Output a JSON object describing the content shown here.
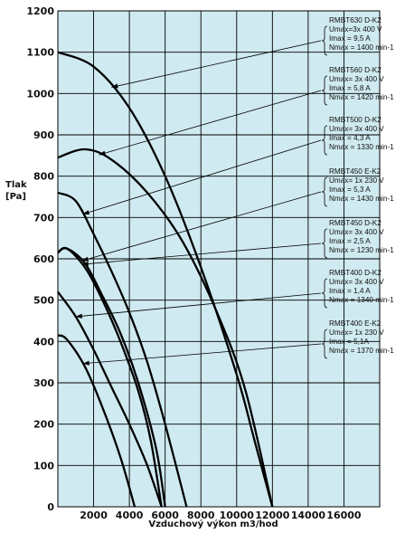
{
  "chart_data": {
    "type": "line",
    "xlabel": "Vzduchový výkon m3/hod",
    "ylabel": "Tlak\n[Pa]",
    "xlim": [
      0,
      18000
    ],
    "ylim": [
      0,
      1200
    ],
    "xticks": [
      2000,
      4000,
      6000,
      8000,
      10000,
      12000,
      14000,
      16000
    ],
    "yticks": [
      0,
      100,
      200,
      300,
      400,
      500,
      600,
      700,
      800,
      900,
      1000,
      1100,
      1200
    ],
    "grid": true,
    "background": "#cfeaf0",
    "series": [
      {
        "name": "RMBT630 D-K2",
        "x": [
          0,
          2000,
          4000,
          6000,
          8000,
          10000,
          11000,
          12000
        ],
        "y": [
          1100,
          1065,
          965,
          800,
          580,
          320,
          160,
          0
        ],
        "note": [
          "Umax=3x 400 V",
          "Imax = 9,5 A",
          "Nmax = 1400 min-1"
        ]
      },
      {
        "name": "RMBT560 D-K2",
        "x": [
          0,
          1500,
          3000,
          5000,
          7000,
          9000,
          10500,
          12000
        ],
        "y": [
          845,
          865,
          840,
          760,
          640,
          460,
          280,
          0
        ],
        "note": [
          "Umax= 3x 400 V",
          "Imax = 5,8 A",
          "Nmax = 1420 min-1"
        ]
      },
      {
        "name": "RMBT500 D-K2",
        "x": [
          0,
          1000,
          2000,
          3000,
          4000,
          5000,
          6000,
          7200
        ],
        "y": [
          760,
          740,
          660,
          570,
          470,
          350,
          200,
          0
        ],
        "note": [
          "Umax= 3x 400 V",
          "Imax = 4,3 A",
          "Nmax = 1330 min-1"
        ]
      },
      {
        "name": "RMBT450 E-K2",
        "x": [
          0,
          500,
          1500,
          2500,
          3500,
          4500,
          5500,
          6000
        ],
        "y": [
          615,
          625,
          590,
          510,
          420,
          300,
          140,
          0
        ],
        "note": [
          "Umax= 1x 230 V",
          "Imax = 5,3 A",
          "Nmax = 1430 min-1"
        ]
      },
      {
        "name": "RMBT450 D-K2",
        "x": [
          0,
          500,
          1500,
          2500,
          3500,
          4500,
          5200,
          5800
        ],
        "y": [
          615,
          625,
          580,
          500,
          400,
          280,
          160,
          0
        ],
        "note": [
          "Umax= 3x 400 V",
          "Imax = 2,5 A",
          "Nmax = 1230 min-1"
        ]
      },
      {
        "name": "RMBT400 D-K2",
        "x": [
          0,
          1000,
          2000,
          3000,
          4000,
          5000,
          5800
        ],
        "y": [
          520,
          460,
          380,
          290,
          200,
          100,
          0
        ],
        "note": [
          "Umax= 3x 400 V",
          "Imax = 1,4 A",
          "Nmax = 1340 min-1"
        ]
      },
      {
        "name": "RMBT400 E-K2",
        "x": [
          0,
          500,
          1500,
          2500,
          3500,
          4300
        ],
        "y": [
          415,
          405,
          340,
          240,
          120,
          0
        ],
        "note": [
          "Umax= 1x 230 V",
          "Imax = 5,1A",
          "Nmax = 1370 min-1"
        ]
      }
    ]
  }
}
